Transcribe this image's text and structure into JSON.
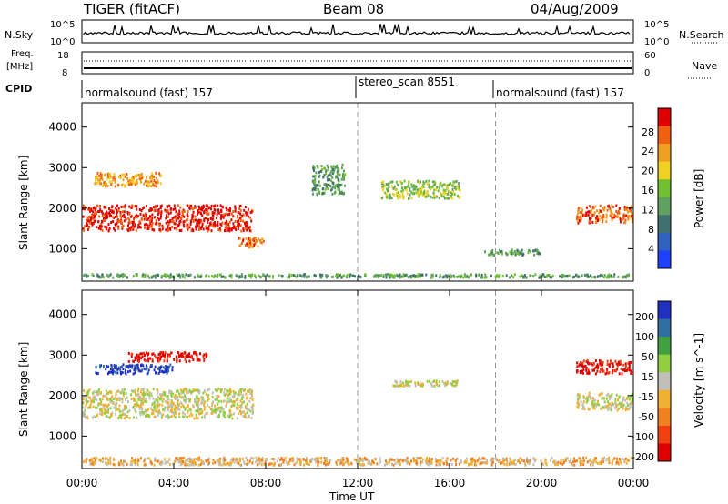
{
  "header": {
    "radar": "TIGER (fitACF)",
    "beam": "Beam 08",
    "date": "04/Aug/2009"
  },
  "nsky": {
    "label": "N.Sky",
    "ticks": [
      "10^5",
      "10^0"
    ],
    "right_label": "N.Search",
    "right_ticks": [
      "10^5",
      "10^0"
    ]
  },
  "freq": {
    "label_line1": "Freq.",
    "label_line2": "[MHz]",
    "ticks": [
      "18",
      "8"
    ],
    "right_label": "Nave",
    "right_ticks": [
      "60",
      "0"
    ]
  },
  "cpid": {
    "label": "CPID",
    "segments": [
      {
        "start_hour": 0,
        "text": "normalsound (fast) 157"
      },
      {
        "start_hour": 12,
        "text": "stereo_scan 8551"
      },
      {
        "start_hour": 18,
        "text": "normalsound (fast) 157"
      }
    ]
  },
  "colors": {
    "power": [
      "#2040ff",
      "#3060c0",
      "#407070",
      "#60a060",
      "#70c030",
      "#f0d020",
      "#f0a020",
      "#f06010",
      "#e00000"
    ],
    "velocity": [
      "#e00000",
      "#f04010",
      "#f08020",
      "#f0b030",
      "#c0c0b8",
      "#90d040",
      "#40a040",
      "#3070a0",
      "#2030c0"
    ]
  },
  "chart_data": [
    {
      "type": "heatmap",
      "name_key": "power",
      "xlabel": "",
      "ylabel": "Slant Range [km]",
      "xlim": [
        0,
        24
      ],
      "ylim": [
        200,
        4600
      ],
      "yticks": [
        "1000",
        "2000",
        "3000",
        "4000"
      ],
      "colorbar": {
        "label": "Power [dB]",
        "ticks": [
          "4",
          "8",
          "12",
          "16",
          "20",
          "24",
          "28"
        ]
      },
      "regions": [
        {
          "x": [
            0,
            7.5
          ],
          "y": [
            1400,
            2100
          ],
          "level": 8
        },
        {
          "x": [
            0.5,
            3.5
          ],
          "y": [
            2500,
            2900
          ],
          "level": 6
        },
        {
          "x": [
            6.8,
            8
          ],
          "y": [
            1000,
            1300
          ],
          "level": 7
        },
        {
          "x": [
            10,
            11.5
          ],
          "y": [
            2300,
            3100
          ],
          "level": 3
        },
        {
          "x": [
            13,
            16.5
          ],
          "y": [
            2200,
            2700
          ],
          "level": 4
        },
        {
          "x": [
            17.5,
            20
          ],
          "y": [
            800,
            1000
          ],
          "level": 3
        },
        {
          "x": [
            21.5,
            24
          ],
          "y": [
            1600,
            2100
          ],
          "level": 7
        },
        {
          "x": [
            0,
            24
          ],
          "y": [
            250,
            400
          ],
          "level": 3
        }
      ]
    },
    {
      "type": "heatmap",
      "name_key": "velocity",
      "xlabel": "Time UT",
      "ylabel": "Slant Range [km]",
      "xlim": [
        0,
        24
      ],
      "ylim": [
        200,
        4600
      ],
      "yticks": [
        "1000",
        "2000",
        "3000",
        "4000"
      ],
      "xticks": [
        "00:00",
        "04:00",
        "08:00",
        "12:00",
        "16:00",
        "20:00",
        "00:00"
      ],
      "colorbar": {
        "label": "Velocity [m s^-1]",
        "ticks": [
          "200",
          "100",
          "50",
          "15",
          "-15",
          "-50",
          "-100",
          "-200"
        ]
      },
      "regions": [
        {
          "x": [
            0,
            7.5
          ],
          "y": [
            1400,
            2200
          ],
          "level": 4
        },
        {
          "x": [
            2,
            5.5
          ],
          "y": [
            2800,
            3100
          ],
          "level": 0
        },
        {
          "x": [
            0.5,
            4
          ],
          "y": [
            2500,
            2800
          ],
          "level": 8
        },
        {
          "x": [
            13.5,
            16.5
          ],
          "y": [
            2200,
            2400
          ],
          "level": 4
        },
        {
          "x": [
            21.5,
            24
          ],
          "y": [
            2500,
            2900
          ],
          "level": 0
        },
        {
          "x": [
            21.5,
            24
          ],
          "y": [
            1600,
            2100
          ],
          "level": 4
        },
        {
          "x": [
            0,
            24
          ],
          "y": [
            250,
            500
          ],
          "level": 3
        }
      ]
    }
  ]
}
